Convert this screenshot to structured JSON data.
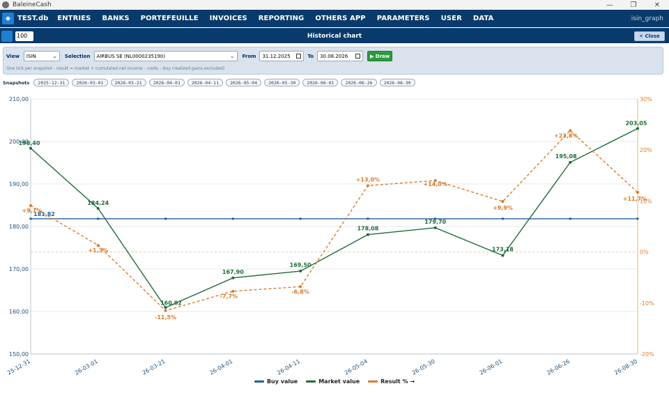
{
  "window": {
    "title": "BaleineCash"
  },
  "menu": {
    "db_name": "TEST.db",
    "items": [
      "ENTRIES",
      "BANKS",
      "PORTEFEUILLE",
      "INVOICES",
      "REPORTING",
      "OTHERS APP",
      "PARAMETERS",
      "USER",
      "DATA"
    ],
    "user": "isin_graph"
  },
  "subbar": {
    "zoom": "100",
    "title": "Historical chart",
    "close_label": "✕ Close"
  },
  "filters": {
    "view_label": "View",
    "view_value": "ISIN",
    "selection_label": "Selection",
    "selection_value": "AIRBUS SE (NL0000235190)",
    "from_label": "From",
    "from_value": "31.12.2025",
    "to_label": "To",
    "to_value": "30.08.2026",
    "draw_label": "▶ Draw",
    "hint": "One tick per snapshot - result = market + cumulated net income – costs – buy (realized gains excluded)"
  },
  "snapshots": {
    "label": "Snapshots",
    "items": [
      "2025-12-31",
      "2026-03-01",
      "2026-03-21",
      "2026-04-01",
      "2026-04-11",
      "2026-05-04",
      "2026-05-30",
      "2026-06-01",
      "2026-06-26",
      "2026-08-30"
    ]
  },
  "colors": {
    "buy": "#1f5f99",
    "market": "#1d6b38",
    "result": "#d87a28",
    "header": "#0a3a6b"
  },
  "chart_data": {
    "type": "line",
    "x": [
      "25-12-31",
      "26-03-01",
      "26-03-21",
      "26-04-01",
      "26-04-11",
      "26-05-04",
      "26-05-30",
      "26-06-01",
      "26-06-26",
      "26-08-30"
    ],
    "y_left_ticks": [
      "150,00",
      "160,00",
      "170,00",
      "180,00",
      "190,00",
      "200,00",
      "210,00"
    ],
    "y_right_ticks": [
      "-20%",
      "-10%",
      "0%",
      "10%",
      "20%",
      "30%"
    ],
    "ylim_left": [
      150,
      210
    ],
    "ylim_right": [
      -20,
      30
    ],
    "grid": true,
    "legend_position": "bottom-center",
    "series": [
      {
        "name": "Buy value",
        "axis": "left",
        "style": "solid",
        "values": [
          181.82,
          181.82,
          181.82,
          181.82,
          181.82,
          181.82,
          181.82,
          181.82,
          181.82,
          181.82
        ],
        "labels": [
          "181,82",
          "",
          "",
          "",
          "",
          "",
          "",
          "",
          "",
          ""
        ]
      },
      {
        "name": "Market value",
        "axis": "left",
        "style": "solid",
        "values": [
          198.4,
          184.24,
          160.92,
          167.9,
          169.5,
          178.08,
          179.7,
          173.18,
          195.08,
          203.05
        ],
        "labels": [
          "198,40",
          "184,24",
          "160,92",
          "167,90",
          "169,50",
          "178,08",
          "179,70",
          "173,18",
          "195,08",
          "203,05"
        ]
      },
      {
        "name": "Result % →",
        "axis": "right",
        "style": "dashed",
        "values": [
          9.1,
          1.3,
          -11.5,
          -7.7,
          -6.8,
          13.0,
          14.0,
          9.9,
          23.8,
          11.7
        ],
        "labels": [
          "+9,1%",
          "+1,3%",
          "-11,5%",
          "-7,7%",
          "-6,8%",
          "+13,0%",
          "+14,0%",
          "+9,9%",
          "+23,8%",
          "+11,7%"
        ]
      }
    ]
  }
}
